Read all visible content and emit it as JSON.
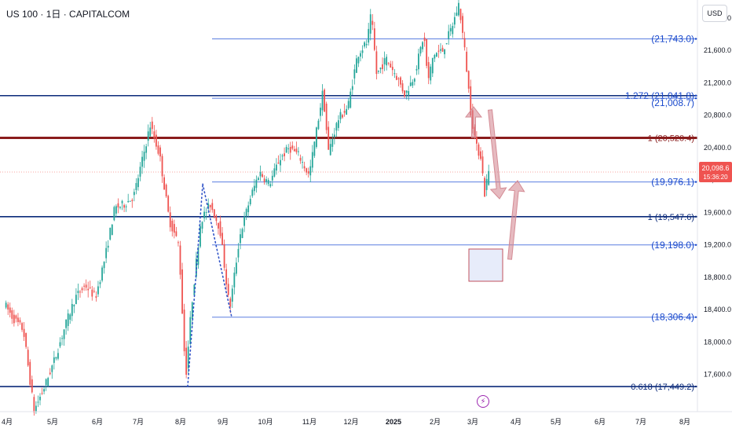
{
  "header": {
    "title": "US 100 · 1日 · CAPITALCOM",
    "currency": "USD"
  },
  "colors": {
    "up": "#26a69a",
    "down": "#ef5350",
    "level_blue": "#1848cc",
    "level_light": "#5b7ee0",
    "level_dark": "#0b2a7a",
    "pivot": "#8a1c1c",
    "arrow": "#d48c95",
    "box": "#3860d8"
  },
  "icons": {
    "event_marker": "lightning-icon"
  },
  "chart_data": {
    "type": "candlestick",
    "title": "US 100 · 1日 · CAPITALCOM",
    "y_ticks": [
      "22,000.0",
      "21,600.0",
      "21,200.0",
      "20,800.0",
      "20,400.0",
      "20,000.0",
      "19,600.0",
      "19,200.0",
      "18,800.0",
      "18,400.0",
      "18,000.0",
      "17,600.0"
    ],
    "x_ticks": [
      "4月",
      "5月",
      "6月",
      "7月",
      "8月",
      "9月",
      "10月",
      "11月",
      "12月",
      "2025",
      "2月",
      "3月",
      "4月",
      "5月",
      "6月",
      "7月",
      "8月"
    ],
    "current_price": {
      "value": "20,098.6",
      "countdown": "15:36:20"
    },
    "levels": [
      {
        "label": "(21,743.0)",
        "value": 21743.0
      },
      {
        "label": "1.272 (21,041.8)",
        "value": 21041.8
      },
      {
        "label": "(21,008.7)",
        "value": 21008.7
      },
      {
        "label": "1 (20,520.4)",
        "value": 20520.4
      },
      {
        "label": "(19,976.1)",
        "value": 19976.1
      },
      {
        "label": "1 (19,547.6)",
        "value": 19547.6
      },
      {
        "label": "(19,198.0)",
        "value": 19198.0
      },
      {
        "label": "(18,306.4)",
        "value": 18306.4
      },
      {
        "label": "0.618 (17,449.2)",
        "value": 17449.2
      }
    ],
    "price_path": [
      [
        "2024-03-28",
        18480
      ],
      [
        "2024-04-05",
        18300
      ],
      [
        "2024-04-12",
        18150
      ],
      [
        "2024-04-19",
        17150
      ],
      [
        "2024-04-26",
        17450
      ],
      [
        "2024-05-03",
        17800
      ],
      [
        "2024-05-10",
        18200
      ],
      [
        "2024-05-17",
        18550
      ],
      [
        "2024-05-24",
        18700
      ],
      [
        "2024-05-31",
        18550
      ],
      [
        "2024-06-07",
        19050
      ],
      [
        "2024-06-14",
        19650
      ],
      [
        "2024-06-21",
        19700
      ],
      [
        "2024-06-28",
        19800
      ],
      [
        "2024-07-05",
        20300
      ],
      [
        "2024-07-10",
        20680
      ],
      [
        "2024-07-17",
        20300
      ],
      [
        "2024-07-24",
        19500
      ],
      [
        "2024-07-31",
        19200
      ],
      [
        "2024-08-05",
        17550
      ],
      [
        "2024-08-09",
        18400
      ],
      [
        "2024-08-16",
        19500
      ],
      [
        "2024-08-23",
        19700
      ],
      [
        "2024-08-30",
        19400
      ],
      [
        "2024-09-06",
        18400
      ],
      [
        "2024-09-13",
        19300
      ],
      [
        "2024-09-20",
        19750
      ],
      [
        "2024-09-27",
        20100
      ],
      [
        "2024-10-04",
        19950
      ],
      [
        "2024-10-11",
        20250
      ],
      [
        "2024-10-18",
        20400
      ],
      [
        "2024-10-25",
        20300
      ],
      [
        "2024-11-01",
        20050
      ],
      [
        "2024-11-11",
        21100
      ],
      [
        "2024-11-15",
        20350
      ],
      [
        "2024-11-22",
        20750
      ],
      [
        "2024-11-29",
        20900
      ],
      [
        "2024-12-06",
        21550
      ],
      [
        "2024-12-13",
        21700
      ],
      [
        "2024-12-16",
        22050
      ],
      [
        "2024-12-20",
        21300
      ],
      [
        "2024-12-27",
        21500
      ],
      [
        "2025-01-03",
        21300
      ],
      [
        "2025-01-10",
        21050
      ],
      [
        "2025-01-17",
        21300
      ],
      [
        "2025-01-24",
        21800
      ],
      [
        "2025-01-27",
        21200
      ],
      [
        "2025-01-31",
        21550
      ],
      [
        "2025-02-07",
        21600
      ],
      [
        "2025-02-14",
        21900
      ],
      [
        "2025-02-19",
        22180
      ],
      [
        "2025-02-24",
        21500
      ],
      [
        "2025-02-28",
        20800
      ],
      [
        "2025-03-04",
        20400
      ],
      [
        "2025-03-07",
        20300
      ],
      [
        "2025-03-10",
        19800
      ],
      [
        "2025-03-12",
        20098.6
      ]
    ],
    "zigzags": [
      {
        "style": "dotted",
        "points": [
          [
            "2024-08-05",
            17450
          ],
          [
            "2024-08-16",
            19950
          ]
        ]
      },
      {
        "style": "dotted",
        "points": [
          [
            "2024-08-16",
            19950
          ],
          [
            "2024-09-06",
            18306
          ]
        ]
      }
    ]
  }
}
